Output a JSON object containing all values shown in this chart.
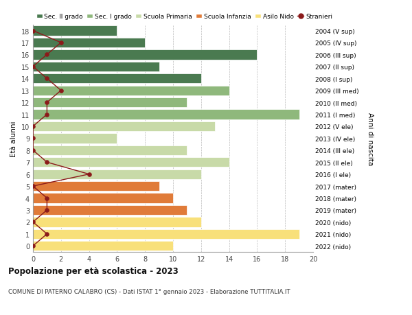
{
  "ages": [
    0,
    1,
    2,
    3,
    4,
    5,
    6,
    7,
    8,
    9,
    10,
    11,
    12,
    13,
    14,
    15,
    16,
    17,
    18
  ],
  "right_labels": [
    "2022 (nido)",
    "2021 (nido)",
    "2020 (nido)",
    "2019 (mater)",
    "2018 (mater)",
    "2017 (mater)",
    "2016 (I ele)",
    "2015 (II ele)",
    "2014 (III ele)",
    "2013 (IV ele)",
    "2012 (V ele)",
    "2011 (I med)",
    "2010 (II med)",
    "2009 (III med)",
    "2008 (I sup)",
    "2007 (II sup)",
    "2006 (III sup)",
    "2005 (IV sup)",
    "2004 (V sup)"
  ],
  "bar_values": [
    10,
    19,
    12,
    11,
    10,
    9,
    12,
    14,
    11,
    6,
    13,
    19,
    11,
    14,
    12,
    9,
    16,
    8,
    6
  ],
  "bar_colors": [
    "#f8e07a",
    "#f8e07a",
    "#f8e07a",
    "#e07b39",
    "#e07b39",
    "#e07b39",
    "#c8daa8",
    "#c8daa8",
    "#c8daa8",
    "#c8daa8",
    "#c8daa8",
    "#8fb87c",
    "#8fb87c",
    "#8fb87c",
    "#4a7a50",
    "#4a7a50",
    "#4a7a50",
    "#4a7a50",
    "#4a7a50"
  ],
  "stranieri_values": [
    0,
    1,
    0,
    1,
    1,
    0,
    4,
    1,
    0,
    0,
    0,
    1,
    1,
    2,
    1,
    0,
    1,
    2,
    0
  ],
  "legend_labels": [
    "Sec. II grado",
    "Sec. I grado",
    "Scuola Primaria",
    "Scuola Infanzia",
    "Asilo Nido",
    "Stranieri"
  ],
  "legend_colors": [
    "#4a7a50",
    "#8fb87c",
    "#c8daa8",
    "#e07b39",
    "#f8e07a",
    "#8b1a1a"
  ],
  "title": "Popolazione per età scolastica - 2023",
  "subtitle": "COMUNE DI PATERNO CALABRO (CS) - Dati ISTAT 1° gennaio 2023 - Elaborazione TUTTITALIA.IT",
  "ylabel_left": "Età alunni",
  "ylabel_right": "Anni di nascita",
  "xlim": [
    0,
    20
  ],
  "background_color": "#ffffff",
  "grid_color": "#bbbbbb"
}
